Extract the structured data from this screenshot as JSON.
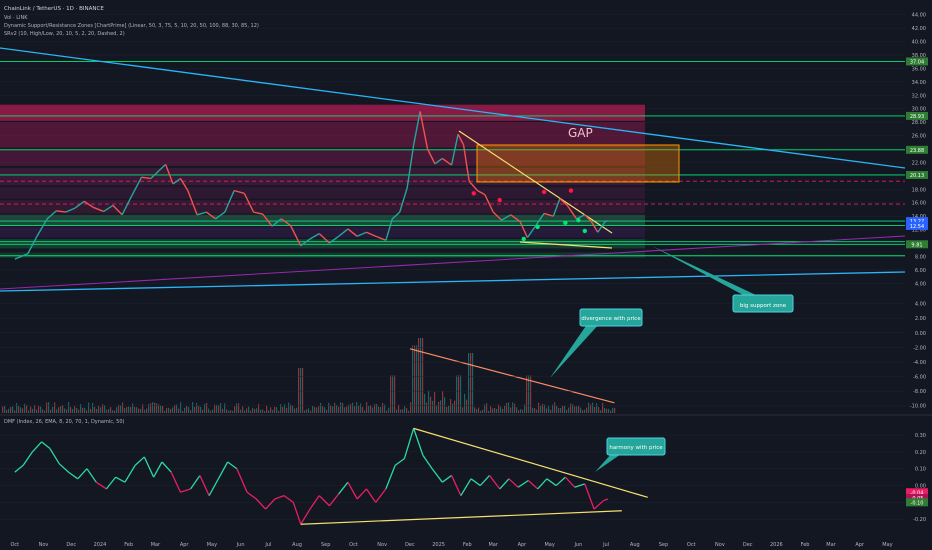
{
  "header": {
    "symbol_line": "ChainLink / TetherUS · 1D · BINANCE",
    "indicator_lines": [
      "Vol · LINK",
      "Dynamic Support/Resistance Zones [ChartPrime] (Linear, 50, 3, 75, 5, 10, 20, 50, 100, 88, 30, 85, 12)",
      "SRv2 (10, High/Low, 20, 10, 5, 2, 20, Dashed, 2)"
    ],
    "dmf_label": "DMF (Index, 26, EMA, 8, 20, 70, 1, Dynamic, 50)"
  },
  "annotations": {
    "gap": "GAP",
    "big_support": "big support zone",
    "divergence": "divergence with price",
    "harmony": "harmony with price"
  },
  "colors": {
    "background": "#131722",
    "grid": "#1f2433",
    "price_up": "#26a69a",
    "price_down": "#ef5350",
    "line_up": "#2bd99f",
    "line_down": "#e91e63",
    "resistance": "#e91e63",
    "support": "#00e676",
    "trend_yellow": "#f5e06e",
    "trend_blue": "#29b6f6",
    "trend_purple": "#9c27b0",
    "gap_fill": "#f57c0088"
  },
  "chart_data": [
    {
      "type": "line",
      "title": "ChainLink / TetherUS · 1D · BINANCE",
      "y_axis_ticks": [
        "44.00",
        "42.00",
        "40.00",
        "38.00",
        "36.00",
        "34.00",
        "32.00",
        "30.00",
        "28.00",
        "26.00",
        "24.00",
        "22.00",
        "20.00",
        "18.00",
        "16.00",
        "14.00",
        "12.00",
        "10.00",
        "8.00",
        "6.00",
        "4.00"
      ],
      "ylim": [
        3,
        45
      ],
      "x_axis_ticks": [
        "Oct",
        "Nov",
        "Dec",
        "2024",
        "Feb",
        "Mar",
        "Apr",
        "May",
        "Jun",
        "Jul",
        "Aug",
        "Sep",
        "Oct",
        "Nov",
        "Dec",
        "2025",
        "Feb",
        "Mar",
        "Apr",
        "May",
        "Jun",
        "Jul",
        "Aug",
        "Sep",
        "Oct",
        "Nov",
        "Dec",
        "2026",
        "Feb",
        "Mar",
        "Apr",
        "May"
      ],
      "price_labels": [
        "37.04",
        "28.93",
        "23.88",
        "20.13",
        "13.27",
        "12.54",
        "9.81"
      ],
      "price_series": [
        [
          "2023-10-01",
          7.6
        ],
        [
          "2023-10-15",
          8.4
        ],
        [
          "2023-10-25",
          11.0
        ],
        [
          "2023-11-05",
          13.6
        ],
        [
          "2023-11-15",
          14.8
        ],
        [
          "2023-11-25",
          14.6
        ],
        [
          "2023-12-05",
          15.2
        ],
        [
          "2023-12-15",
          16.2
        ],
        [
          "2023-12-25",
          15.3
        ],
        [
          "2024-01-05",
          14.7
        ],
        [
          "2024-01-15",
          15.6
        ],
        [
          "2024-01-25",
          14.2
        ],
        [
          "2024-02-05",
          17.2
        ],
        [
          "2024-02-15",
          19.8
        ],
        [
          "2024-02-25",
          19.6
        ],
        [
          "2024-03-05",
          20.8
        ],
        [
          "2024-03-12",
          21.7
        ],
        [
          "2024-03-20",
          18.8
        ],
        [
          "2024-03-28",
          19.6
        ],
        [
          "2024-04-05",
          17.8
        ],
        [
          "2024-04-15",
          14.2
        ],
        [
          "2024-04-25",
          14.6
        ],
        [
          "2024-05-05",
          13.6
        ],
        [
          "2024-05-15",
          14.6
        ],
        [
          "2024-05-25",
          17.8
        ],
        [
          "2024-06-05",
          17.4
        ],
        [
          "2024-06-15",
          14.6
        ],
        [
          "2024-06-25",
          14.3
        ],
        [
          "2024-07-05",
          12.5
        ],
        [
          "2024-07-15",
          13.6
        ],
        [
          "2024-07-25",
          12.6
        ],
        [
          "2024-08-05",
          9.6
        ],
        [
          "2024-08-15",
          10.6
        ],
        [
          "2024-08-25",
          11.4
        ],
        [
          "2024-09-05",
          10.0
        ],
        [
          "2024-09-15",
          11.0
        ],
        [
          "2024-09-25",
          12.1
        ],
        [
          "2024-10-05",
          11.0
        ],
        [
          "2024-10-15",
          11.6
        ],
        [
          "2024-10-25",
          11.0
        ],
        [
          "2024-11-05",
          10.4
        ],
        [
          "2024-11-12",
          13.6
        ],
        [
          "2024-11-20",
          14.6
        ],
        [
          "2024-11-28",
          18.2
        ],
        [
          "2024-12-05",
          24.6
        ],
        [
          "2024-12-12",
          29.6
        ],
        [
          "2024-12-20",
          24.0
        ],
        [
          "2024-12-28",
          21.8
        ],
        [
          "2025-01-05",
          22.6
        ],
        [
          "2025-01-15",
          21.6
        ],
        [
          "2025-01-22",
          26.2
        ],
        [
          "2025-01-28",
          24.6
        ],
        [
          "2025-02-03",
          19.2
        ],
        [
          "2025-02-12",
          17.8
        ],
        [
          "2025-02-20",
          17.2
        ],
        [
          "2025-03-01",
          14.6
        ],
        [
          "2025-03-10",
          13.4
        ],
        [
          "2025-03-20",
          14.2
        ],
        [
          "2025-03-30",
          13.2
        ],
        [
          "2025-04-07",
          10.8
        ],
        [
          "2025-04-15",
          12.4
        ],
        [
          "2025-04-25",
          14.4
        ],
        [
          "2025-05-05",
          14.0
        ],
        [
          "2025-05-12",
          16.6
        ],
        [
          "2025-05-20",
          15.6
        ],
        [
          "2025-05-30",
          13.6
        ],
        [
          "2025-06-08",
          14.2
        ],
        [
          "2025-06-15",
          13.2
        ],
        [
          "2025-06-22",
          11.6
        ],
        [
          "2025-06-30",
          13.2
        ],
        [
          "2025-07-03",
          13.3
        ]
      ]
    },
    {
      "type": "bar",
      "title": "Vol · LINK",
      "y_axis_ticks": [
        "4.00",
        "2.00",
        "0.00",
        "-2.00",
        "-4.00",
        "-6.00",
        "-8.00",
        "-10.00"
      ],
      "ylim": [
        -11,
        4.5
      ],
      "volume_highlights": [
        [
          "2024-08-05",
          6
        ],
        [
          "2024-11-12",
          5
        ],
        [
          "2024-12-05",
          9
        ],
        [
          "2024-12-12",
          10
        ],
        [
          "2025-01-22",
          5
        ],
        [
          "2025-02-03",
          8
        ],
        [
          "2025-04-07",
          5
        ]
      ],
      "divergence_line": {
        "from": [
          "2024-12-01",
          -2.2
        ],
        "to": [
          "2025-07-10",
          -9.6
        ]
      }
    },
    {
      "type": "line",
      "title": "DMF (Index, 26, EMA, 8, 20, 70, 1, Dynamic, 50)",
      "y_axis_ticks": [
        "0.30",
        "0.20",
        "0.10",
        "0.00",
        "-0.10",
        "-0.20"
      ],
      "ylim": [
        -0.3,
        0.36
      ],
      "value_labels": [
        "-0.04",
        "-0.05",
        "-0.10"
      ],
      "dmf_series": [
        [
          "2023-10-01",
          0.08
        ],
        [
          "2023-10-10",
          0.12
        ],
        [
          "2023-10-20",
          0.2
        ],
        [
          "2023-10-30",
          0.26
        ],
        [
          "2023-11-08",
          0.22
        ],
        [
          "2023-11-18",
          0.13
        ],
        [
          "2023-11-28",
          0.08
        ],
        [
          "2023-12-08",
          0.04
        ],
        [
          "2023-12-18",
          0.1
        ],
        [
          "2023-12-28",
          0.02
        ],
        [
          "2024-01-08",
          -0.02
        ],
        [
          "2024-01-18",
          0.05
        ],
        [
          "2024-01-28",
          0.02
        ],
        [
          "2024-02-08",
          0.12
        ],
        [
          "2024-02-18",
          0.17
        ],
        [
          "2024-02-28",
          0.05
        ],
        [
          "2024-03-08",
          0.14
        ],
        [
          "2024-03-18",
          0.08
        ],
        [
          "2024-03-28",
          -0.04
        ],
        [
          "2024-04-08",
          -0.02
        ],
        [
          "2024-04-18",
          0.06
        ],
        [
          "2024-04-28",
          -0.06
        ],
        [
          "2024-05-08",
          0.04
        ],
        [
          "2024-05-18",
          0.14
        ],
        [
          "2024-05-28",
          0.1
        ],
        [
          "2024-06-08",
          -0.04
        ],
        [
          "2024-06-18",
          -0.08
        ],
        [
          "2024-06-28",
          -0.14
        ],
        [
          "2024-07-08",
          -0.08
        ],
        [
          "2024-07-18",
          -0.06
        ],
        [
          "2024-07-28",
          -0.1
        ],
        [
          "2024-08-05",
          -0.23
        ],
        [
          "2024-08-15",
          -0.14
        ],
        [
          "2024-08-25",
          -0.06
        ],
        [
          "2024-09-05",
          -0.12
        ],
        [
          "2024-09-15",
          -0.05
        ],
        [
          "2024-09-25",
          0.02
        ],
        [
          "2024-10-05",
          -0.08
        ],
        [
          "2024-10-15",
          -0.02
        ],
        [
          "2024-10-25",
          -0.1
        ],
        [
          "2024-11-05",
          -0.02
        ],
        [
          "2024-11-15",
          0.12
        ],
        [
          "2024-11-25",
          0.16
        ],
        [
          "2024-12-05",
          0.34
        ],
        [
          "2024-12-15",
          0.18
        ],
        [
          "2024-12-25",
          0.1
        ],
        [
          "2025-01-05",
          0.02
        ],
        [
          "2025-01-15",
          0.06
        ],
        [
          "2025-01-25",
          -0.06
        ],
        [
          "2025-02-05",
          0.04
        ],
        [
          "2025-02-15",
          0.0
        ],
        [
          "2025-02-25",
          0.06
        ],
        [
          "2025-03-08",
          -0.02
        ],
        [
          "2025-03-18",
          0.04
        ],
        [
          "2025-03-28",
          -0.01
        ],
        [
          "2025-04-08",
          0.03
        ],
        [
          "2025-04-18",
          -0.02
        ],
        [
          "2025-04-28",
          0.04
        ],
        [
          "2025-05-08",
          0.0
        ],
        [
          "2025-05-18",
          0.05
        ],
        [
          "2025-05-28",
          -0.01
        ],
        [
          "2025-06-08",
          0.01
        ],
        [
          "2025-06-18",
          -0.14
        ],
        [
          "2025-06-28",
          -0.09
        ],
        [
          "2025-07-03",
          -0.08
        ]
      ],
      "upper_trend": {
        "from": [
          "2024-12-05",
          0.34
        ],
        "to": [
          "2025-08-15",
          -0.07
        ]
      },
      "lower_trend": {
        "from": [
          "2024-08-05",
          -0.23
        ],
        "to": [
          "2025-07-18",
          -0.15
        ]
      }
    }
  ]
}
